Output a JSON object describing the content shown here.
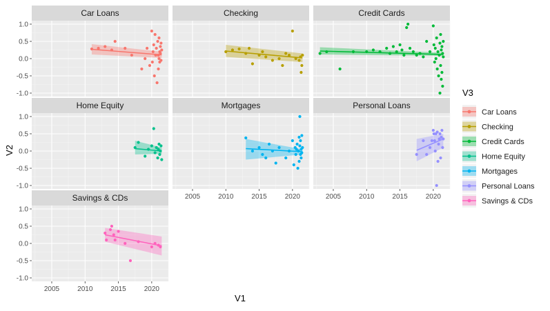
{
  "chart_data": {
    "type": "scatter",
    "title": "",
    "xlabel": "V1",
    "ylabel": "V2",
    "legend_title": "V3",
    "legend_position": "right",
    "grid": true,
    "xlim": [
      2002,
      2022.5
    ],
    "ylim": [
      -1.1,
      1.1
    ],
    "x_ticks": [
      "2005",
      "2010",
      "2015",
      "2020"
    ],
    "x_tick_values": [
      2005,
      2010,
      2015,
      2020
    ],
    "y_ticks": [
      "-1.0",
      "-0.5",
      "0.0",
      "0.5",
      "1.0"
    ],
    "y_tick_values": [
      -1.0,
      -0.5,
      0.0,
      0.5,
      1.0
    ],
    "panel_background": "#EBEBEB",
    "strip_background": "#D9D9D9",
    "facets": [
      {
        "name": "Car Loans",
        "color": "#F8766D",
        "trend": {
          "x": [
            2011,
            2021.5
          ],
          "y": [
            0.27,
            0.11
          ],
          "band_start": [
            0.12,
            0.42
          ],
          "band_end": [
            0.02,
            0.2
          ]
        },
        "points": [
          [
            2011,
            0.28
          ],
          [
            2012,
            0.3
          ],
          [
            2013,
            0.35
          ],
          [
            2014,
            0.25
          ],
          [
            2014.5,
            0.5
          ],
          [
            2016,
            0.3
          ],
          [
            2017,
            0.1
          ],
          [
            2018.5,
            -0.3
          ],
          [
            2019,
            0.0
          ],
          [
            2019.3,
            0.3
          ],
          [
            2019.7,
            -0.2
          ],
          [
            2020,
            0.8
          ],
          [
            2020.1,
            -0.1
          ],
          [
            2020.2,
            0.2
          ],
          [
            2020.3,
            0.4
          ],
          [
            2020.4,
            -0.5
          ],
          [
            2020.5,
            0.7
          ],
          [
            2020.6,
            0.1
          ],
          [
            2020.7,
            0.3
          ],
          [
            2020.8,
            -0.7
          ],
          [
            2020.9,
            0.5
          ],
          [
            2021,
            0.1
          ],
          [
            2021,
            -0.3
          ],
          [
            2021.1,
            0.6
          ],
          [
            2021.1,
            0.0
          ],
          [
            2021.2,
            0.2
          ],
          [
            2021.2,
            -0.1
          ],
          [
            2021.3,
            0.35
          ],
          [
            2021.3,
            0.15
          ],
          [
            2021.4,
            0.45
          ],
          [
            2021.4,
            -0.05
          ],
          [
            2021.5,
            0.25
          ]
        ]
      },
      {
        "name": "Checking",
        "color": "#B79F00",
        "trend": {
          "x": [
            2010,
            2021.5
          ],
          "y": [
            0.22,
            0.02
          ],
          "band_start": [
            0.05,
            0.4
          ],
          "band_end": [
            -0.1,
            0.15
          ]
        },
        "points": [
          [
            2010,
            0.2
          ],
          [
            2011,
            0.25
          ],
          [
            2012,
            0.28
          ],
          [
            2013,
            0.15
          ],
          [
            2013.5,
            0.3
          ],
          [
            2014,
            -0.15
          ],
          [
            2015,
            0.1
          ],
          [
            2015.5,
            0.2
          ],
          [
            2016,
            0.05
          ],
          [
            2017,
            -0.05
          ],
          [
            2018,
            0.0
          ],
          [
            2018.5,
            -0.2
          ],
          [
            2019,
            0.15
          ],
          [
            2019.5,
            0.1
          ],
          [
            2020,
            0.8
          ],
          [
            2020.5,
            0.0
          ],
          [
            2021,
            -0.05
          ],
          [
            2021.2,
            0.05
          ],
          [
            2021.3,
            -0.4
          ],
          [
            2021.4,
            -0.2
          ],
          [
            2021.5,
            0.1
          ]
        ]
      },
      {
        "name": "Credit Cards",
        "color": "#00BA38",
        "trend": {
          "x": [
            2003,
            2021.5
          ],
          "y": [
            0.22,
            0.12
          ],
          "band_start": [
            0.12,
            0.33
          ],
          "band_end": [
            0.08,
            0.17
          ]
        },
        "points": [
          [
            2003,
            0.15
          ],
          [
            2004,
            0.2
          ],
          [
            2006,
            -0.3
          ],
          [
            2008,
            0.2
          ],
          [
            2010,
            0.2
          ],
          [
            2011,
            0.25
          ],
          [
            2012,
            0.2
          ],
          [
            2013,
            0.3
          ],
          [
            2013.5,
            0.15
          ],
          [
            2014,
            0.35
          ],
          [
            2014.5,
            0.2
          ],
          [
            2015,
            0.4
          ],
          [
            2015.3,
            0.25
          ],
          [
            2015.6,
            0.1
          ],
          [
            2016,
            0.9
          ],
          [
            2016.2,
            1.0
          ],
          [
            2016.5,
            0.3
          ],
          [
            2017,
            0.2
          ],
          [
            2017.5,
            0.1
          ],
          [
            2018,
            0.15
          ],
          [
            2018.5,
            0.05
          ],
          [
            2019,
            0.5
          ],
          [
            2019.5,
            0.2
          ],
          [
            2020,
            0.95
          ],
          [
            2020.1,
            0.4
          ],
          [
            2020.2,
            -0.1
          ],
          [
            2020.3,
            0.3
          ],
          [
            2020.4,
            0.0
          ],
          [
            2020.5,
            0.6
          ],
          [
            2020.6,
            -0.3
          ],
          [
            2020.7,
            0.2
          ],
          [
            2020.8,
            -0.5
          ],
          [
            2020.9,
            0.1
          ],
          [
            2021,
            -1.0
          ],
          [
            2021,
            0.45
          ],
          [
            2021.1,
            -0.2
          ],
          [
            2021.1,
            0.7
          ],
          [
            2021.2,
            0.25
          ],
          [
            2021.2,
            -0.6
          ],
          [
            2021.3,
            0.35
          ],
          [
            2021.3,
            -0.4
          ],
          [
            2021.4,
            0.15
          ],
          [
            2021.4,
            -0.8
          ],
          [
            2021.5,
            0.5
          ],
          [
            2021.5,
            0.05
          ]
        ]
      },
      {
        "name": "Home Equity",
        "color": "#00C08B",
        "trend": {
          "x": [
            2017.5,
            2021.5
          ],
          "y": [
            0.07,
            0.0
          ],
          "band_start": [
            -0.1,
            0.3
          ],
          "band_end": [
            -0.08,
            0.1
          ]
        },
        "points": [
          [
            2017.5,
            0.1
          ],
          [
            2018,
            0.25
          ],
          [
            2019,
            -0.15
          ],
          [
            2019.5,
            0.05
          ],
          [
            2020,
            0.15
          ],
          [
            2020.3,
            0.65
          ],
          [
            2020.5,
            -0.05
          ],
          [
            2020.7,
            0.1
          ],
          [
            2020.9,
            -0.2
          ],
          [
            2021,
            0.05
          ],
          [
            2021.1,
            0.2
          ],
          [
            2021.2,
            -0.1
          ],
          [
            2021.3,
            0.0
          ],
          [
            2021.4,
            0.15
          ],
          [
            2021.5,
            -0.25
          ]
        ]
      },
      {
        "name": "Mortgages",
        "color": "#00B4F0",
        "trend": {
          "x": [
            2013,
            2021.5
          ],
          "y": [
            0.07,
            -0.02
          ],
          "band_start": [
            -0.25,
            0.35
          ],
          "band_end": [
            -0.1,
            0.05
          ]
        },
        "points": [
          [
            2013,
            0.38
          ],
          [
            2014,
            0.0
          ],
          [
            2015,
            0.1
          ],
          [
            2015.5,
            -0.1
          ],
          [
            2016,
            -0.2
          ],
          [
            2016.5,
            0.2
          ],
          [
            2017,
            0.0
          ],
          [
            2017.5,
            -0.35
          ],
          [
            2018,
            0.1
          ],
          [
            2019,
            -0.2
          ],
          [
            2019.5,
            0.0
          ],
          [
            2020,
            0.3
          ],
          [
            2020.2,
            -0.4
          ],
          [
            2020.4,
            0.1
          ],
          [
            2020.5,
            -0.1
          ],
          [
            2020.6,
            0.05
          ],
          [
            2020.7,
            0.2
          ],
          [
            2020.8,
            -0.5
          ],
          [
            2020.9,
            0.0
          ],
          [
            2021,
            0.4
          ],
          [
            2021,
            -0.3
          ],
          [
            2021.1,
            1.0
          ],
          [
            2021.1,
            0.15
          ],
          [
            2021.2,
            -0.1
          ],
          [
            2021.2,
            0.3
          ],
          [
            2021.3,
            -0.2
          ],
          [
            2021.3,
            0.05
          ],
          [
            2021.4,
            0.45
          ],
          [
            2021.4,
            -0.05
          ],
          [
            2021.5,
            0.1
          ]
        ]
      },
      {
        "name": "Personal Loans",
        "color": "#9590FF",
        "trend": {
          "x": [
            2017.5,
            2021.5
          ],
          "y": [
            0.02,
            0.35
          ],
          "band_start": [
            -0.3,
            0.35
          ],
          "band_end": [
            0.1,
            0.5
          ]
        },
        "points": [
          [
            2017.5,
            -0.1
          ],
          [
            2018.5,
            0.3
          ],
          [
            2019,
            -0.1
          ],
          [
            2019.5,
            0.1
          ],
          [
            2019.8,
            0.3
          ],
          [
            2020,
            0.6
          ],
          [
            2020.1,
            0.5
          ],
          [
            2020.2,
            0.3
          ],
          [
            2020.3,
            0.0
          ],
          [
            2020.4,
            0.5
          ],
          [
            2020.5,
            -1.0
          ],
          [
            2020.6,
            0.55
          ],
          [
            2020.7,
            -0.3
          ],
          [
            2020.8,
            0.2
          ],
          [
            2020.9,
            0.35
          ],
          [
            2021,
            0.5
          ],
          [
            2021.1,
            -0.2
          ],
          [
            2021.2,
            0.4
          ],
          [
            2021.3,
            0.6
          ],
          [
            2021.4,
            0.1
          ],
          [
            2021.5,
            0.35
          ]
        ]
      },
      {
        "name": "Savings & CDs",
        "color": "#FF62BC",
        "trend": {
          "x": [
            2013,
            2021.5
          ],
          "y": [
            0.25,
            -0.07
          ],
          "band_start": [
            0.05,
            0.45
          ],
          "band_end": [
            -0.35,
            0.2
          ]
        },
        "points": [
          [
            2013,
            0.3
          ],
          [
            2013.2,
            0.1
          ],
          [
            2013.8,
            0.4
          ],
          [
            2014,
            0.5
          ],
          [
            2014.3,
            0.25
          ],
          [
            2014.5,
            0.1
          ],
          [
            2015,
            0.35
          ],
          [
            2016,
            0.0
          ],
          [
            2016.8,
            -0.5
          ],
          [
            2018,
            0.05
          ],
          [
            2020,
            -0.1
          ],
          [
            2020.5,
            0.0
          ],
          [
            2021,
            -0.05
          ],
          [
            2021.3,
            -0.1
          ]
        ]
      }
    ]
  }
}
